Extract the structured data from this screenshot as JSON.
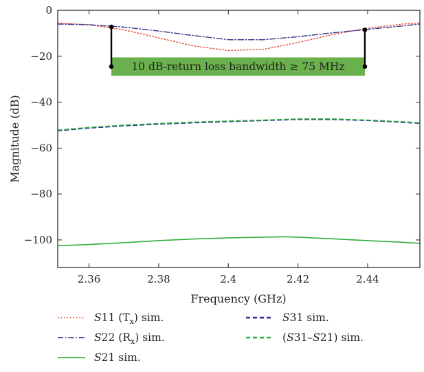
{
  "chart_data": {
    "type": "line",
    "title": "",
    "xlabel": "Frequency (GHz)",
    "ylabel": "Magnitude (dB)",
    "xlim": [
      2.351,
      2.455
    ],
    "ylim": [
      -112,
      0
    ],
    "x_ticks": [
      2.36,
      2.38,
      2.4,
      2.42,
      2.44
    ],
    "x_tick_labels": [
      "2.36",
      "2.38",
      "2.4",
      "2.42",
      "2.44"
    ],
    "y_ticks": [
      0,
      -20,
      -40,
      -60,
      -80,
      -100
    ],
    "y_tick_labels": [
      "0",
      "−20",
      "−40",
      "−60",
      "−80",
      "−100"
    ],
    "grid": false,
    "legend_position": "bottom",
    "series": [
      {
        "name": "S11 (Tx) sim.",
        "legend_label": {
          "prefix": "S",
          "main": "11 (T",
          "sub": "x",
          "suffix": ") sim."
        },
        "color": "#e8503a",
        "dash": "dotted",
        "x": [
          2.351,
          2.36,
          2.37,
          2.38,
          2.39,
          2.4,
          2.41,
          2.42,
          2.43,
          2.44,
          2.45,
          2.455
        ],
        "y": [
          -5.5,
          -6.3,
          -8.5,
          -12.0,
          -15.5,
          -17.5,
          -17.0,
          -14.0,
          -10.5,
          -7.8,
          -6.0,
          -5.5
        ]
      },
      {
        "name": "S22 (Rx) sim.",
        "legend_label": {
          "prefix": "S",
          "main": "22 (R",
          "sub": "x",
          "suffix": ") sim."
        },
        "color": "#3c3f8e",
        "dash": "dashdot",
        "x": [
          2.351,
          2.36,
          2.37,
          2.38,
          2.39,
          2.4,
          2.41,
          2.42,
          2.43,
          2.44,
          2.45,
          2.455
        ],
        "y": [
          -6.0,
          -6.3,
          -7.3,
          -9.0,
          -11.0,
          -12.8,
          -12.8,
          -11.5,
          -9.8,
          -8.3,
          -6.8,
          -6.0
        ]
      },
      {
        "name": "S21 sim.",
        "legend_label": {
          "prefix": "S",
          "main": "21 sim.",
          "sub": "",
          "suffix": ""
        },
        "color": "#2fae3a",
        "dash": "solid",
        "x": [
          2.351,
          2.36,
          2.37,
          2.38,
          2.39,
          2.4,
          2.41,
          2.416,
          2.42,
          2.43,
          2.44,
          2.45,
          2.455
        ],
        "y": [
          -102.5,
          -102.0,
          -101.2,
          -100.3,
          -99.6,
          -99.1,
          -98.8,
          -98.6,
          -98.8,
          -99.5,
          -100.3,
          -101.0,
          -101.5
        ]
      },
      {
        "name": "S31 sim.",
        "legend_label": {
          "prefix": "S",
          "main": "31 sim.",
          "sub": "",
          "suffix": ""
        },
        "color": "#2b2d8f",
        "dash": "dashed",
        "x": [
          2.351,
          2.36,
          2.37,
          2.38,
          2.39,
          2.4,
          2.41,
          2.42,
          2.43,
          2.44,
          2.45,
          2.455
        ],
        "y": [
          -52.5,
          -51.3,
          -50.3,
          -49.6,
          -49.0,
          -48.5,
          -48.0,
          -47.6,
          -47.6,
          -48.0,
          -48.8,
          -49.2
        ]
      },
      {
        "name": "(S31–S21) sim.",
        "legend_label": {
          "prefix": "(",
          "main": "S31–S21",
          "sub": "",
          "suffix": ") sim."
        },
        "color": "#2fae3a",
        "dash": "dashed",
        "x": [
          2.351,
          2.36,
          2.37,
          2.38,
          2.39,
          2.4,
          2.41,
          2.42,
          2.43,
          2.44,
          2.45,
          2.455
        ],
        "y": [
          -52.2,
          -51.0,
          -50.0,
          -49.3,
          -48.7,
          -48.2,
          -47.8,
          -47.3,
          -47.3,
          -47.8,
          -48.5,
          -49.0
        ]
      }
    ],
    "annotations": [
      {
        "text": "10 dB-return loss bandwidth ≥ 75 MHz",
        "box_color": "#6ab04c",
        "box_x_range": [
          2.3664,
          2.4392
        ],
        "box_y_range": [
          -20.5,
          -28.5
        ],
        "markers": [
          {
            "x": 2.3664,
            "y_top": -7.2,
            "y_bottom": -24.5
          },
          {
            "x": 2.4392,
            "y_top": -8.5,
            "y_bottom": -24.5
          }
        ]
      }
    ]
  }
}
